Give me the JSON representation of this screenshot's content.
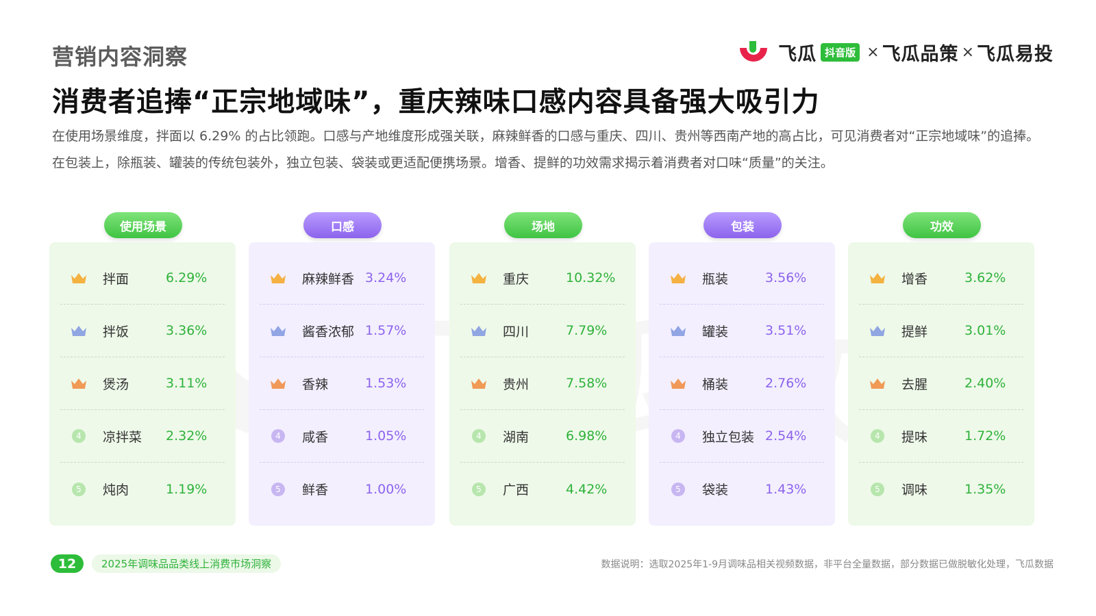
{
  "header": {
    "section_label": "营销内容洞察",
    "headline": "消费者追捧“正宗地域味”，重庆辣味口感内容具备强大吸引力",
    "summary": "在使用场景维度，拌面以 6.29% 的占比领跑。口感与产地维度形成强关联，麻辣鲜香的口感与重庆、四川、贵州等西南产地的高占比，可见消费者对“正宗地域味”的追捧。在包装上，除瓶装、罐装的传统包装外，独立包装、袋装或更适配便携场景。增香、提鲜的功效需求揭示着消费者对口味“质量”的关注。"
  },
  "brand": {
    "name1": "飞瓜",
    "tag": "抖音版",
    "sep": "×",
    "name2": "飞瓜品策",
    "name3": "飞瓜易投"
  },
  "watermark": {
    "text": "飞瓜数据"
  },
  "colors": {
    "green": "#2fb23b",
    "purple": "#8c63ec",
    "gold": "#f5a623",
    "silver": "#7f98e0",
    "bronze": "#f08a3c"
  },
  "columns": [
    {
      "title": "使用场景",
      "items": [
        {
          "rank": "1",
          "name": "拌面",
          "value": "6.29%"
        },
        {
          "rank": "2",
          "name": "拌饭",
          "value": "3.36%"
        },
        {
          "rank": "3",
          "name": "煲汤",
          "value": "3.11%"
        },
        {
          "rank": "4",
          "name": "凉拌菜",
          "value": "2.32%"
        },
        {
          "rank": "5",
          "name": "炖肉",
          "value": "1.19%"
        }
      ]
    },
    {
      "title": "口感",
      "items": [
        {
          "rank": "1",
          "name": "麻辣鲜香",
          "value": "3.24%"
        },
        {
          "rank": "2",
          "name": "酱香浓郁",
          "value": "1.57%"
        },
        {
          "rank": "3",
          "name": "香辣",
          "value": "1.53%"
        },
        {
          "rank": "4",
          "name": "咸香",
          "value": "1.05%"
        },
        {
          "rank": "5",
          "name": "鲜香",
          "value": "1.00%"
        }
      ]
    },
    {
      "title": "场地",
      "items": [
        {
          "rank": "1",
          "name": "重庆",
          "value": "10.32%"
        },
        {
          "rank": "2",
          "name": "四川",
          "value": "7.79%"
        },
        {
          "rank": "3",
          "name": "贵州",
          "value": "7.58%"
        },
        {
          "rank": "4",
          "name": "湖南",
          "value": "6.98%"
        },
        {
          "rank": "5",
          "name": "广西",
          "value": "4.42%"
        }
      ]
    },
    {
      "title": "包装",
      "items": [
        {
          "rank": "1",
          "name": "瓶装",
          "value": "3.56%"
        },
        {
          "rank": "2",
          "name": "罐装",
          "value": "3.51%"
        },
        {
          "rank": "3",
          "name": "桶装",
          "value": "2.76%"
        },
        {
          "rank": "4",
          "name": "独立包装",
          "value": "2.54%"
        },
        {
          "rank": "5",
          "name": "袋装",
          "value": "1.43%"
        }
      ]
    },
    {
      "title": "功效",
      "items": [
        {
          "rank": "1",
          "name": "增香",
          "value": "3.62%"
        },
        {
          "rank": "2",
          "name": "提鲜",
          "value": "3.01%"
        },
        {
          "rank": "3",
          "name": "去腥",
          "value": "2.40%"
        },
        {
          "rank": "4",
          "name": "提味",
          "value": "1.72%"
        },
        {
          "rank": "5",
          "name": "调味",
          "value": "1.35%"
        }
      ]
    }
  ],
  "footer": {
    "page_number": "12",
    "report_title": "2025年调味品品类线上消费市场洞察",
    "note": "数据说明：选取2025年1-9月调味品相关视频数据，非平台全量数据，部分数据已做脱敏化处理，飞瓜数据"
  }
}
